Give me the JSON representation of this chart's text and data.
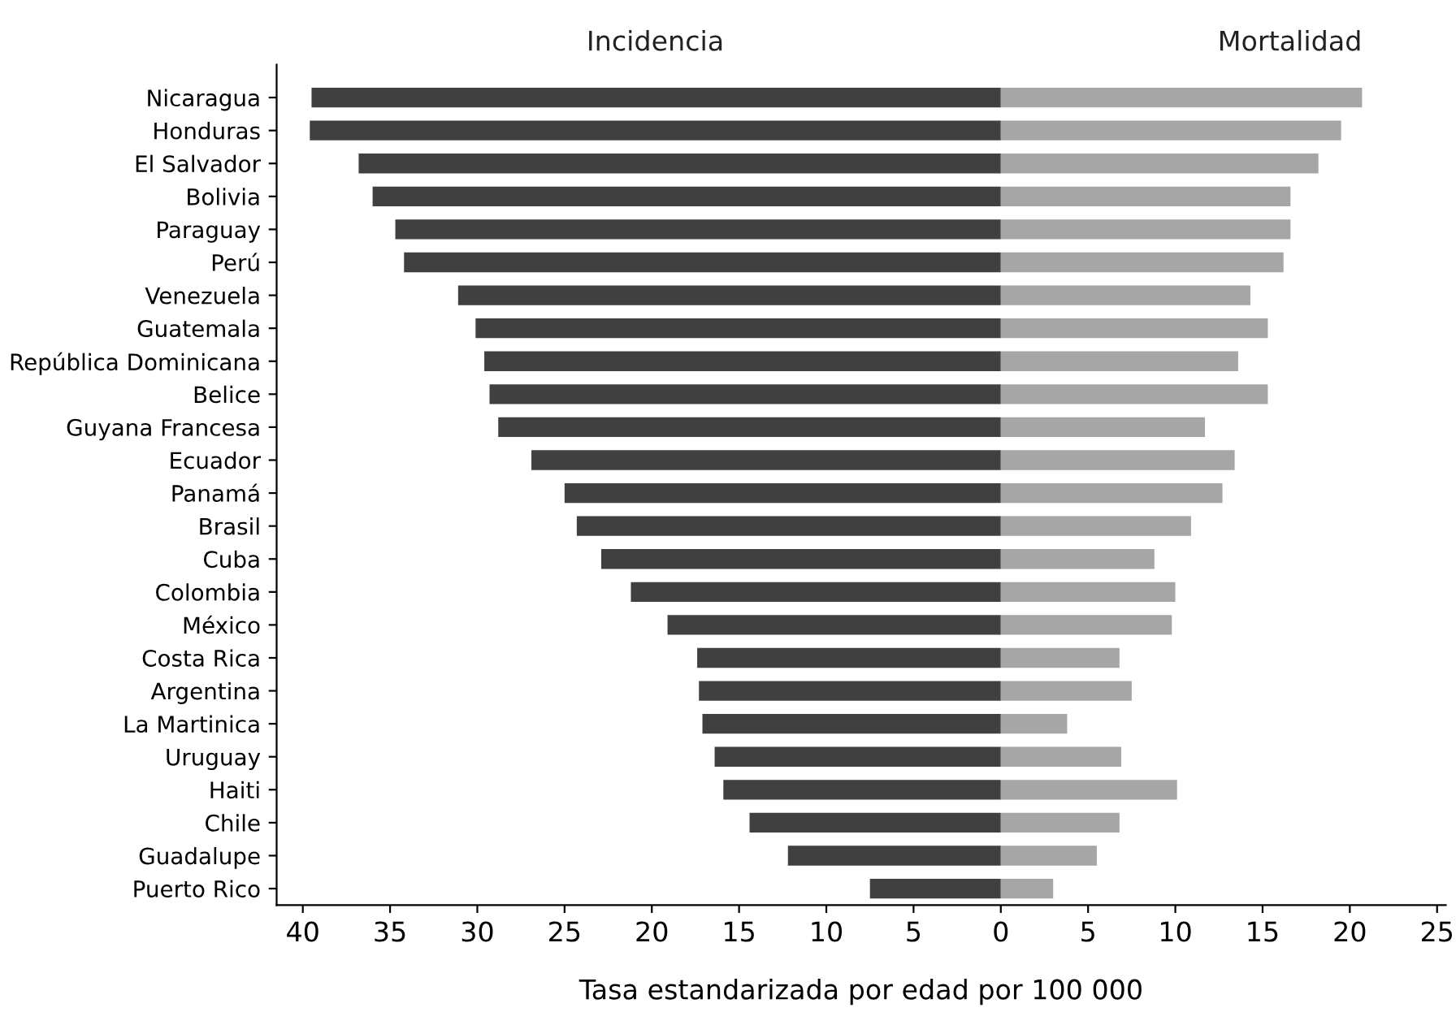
{
  "chart_data": {
    "type": "bar",
    "orientation": "horizontal",
    "stacked": true,
    "xlabel": "Tasa estandarizada por edad por 100 000",
    "categories": [
      "Nicaragua",
      "Honduras",
      "El Salvador",
      "Bolivia",
      "Paraguay",
      "Perú",
      "Venezuela",
      "Guatemala",
      "República Dominicana",
      "Belice",
      "Guyana Francesa",
      "Ecuador",
      "Panamá",
      "Brasil",
      "Cuba",
      "Colombia",
      "México",
      "Costa Rica",
      "Argentina",
      "La Martinica",
      "Uruguay",
      "Haiti",
      "Chile",
      "Guadalupe",
      "Puerto Rico"
    ],
    "series": [
      {
        "name": "Incidencia",
        "color": "#404040",
        "values": [
          -39.5,
          -39.6,
          -36.8,
          -36.0,
          -34.7,
          -34.2,
          -31.1,
          -30.1,
          -29.6,
          -29.3,
          -28.8,
          -26.9,
          -25.0,
          -24.3,
          -22.9,
          -21.2,
          -19.1,
          -17.4,
          -17.3,
          -17.1,
          -16.4,
          -15.9,
          -14.4,
          -12.2,
          -7.5
        ]
      },
      {
        "name": "Mortalidad",
        "color": "#a6a6a6",
        "values": [
          20.7,
          19.5,
          18.2,
          16.6,
          16.6,
          16.2,
          14.3,
          15.3,
          13.6,
          15.3,
          11.7,
          13.4,
          12.7,
          10.9,
          8.8,
          10.0,
          9.8,
          6.8,
          7.5,
          3.8,
          6.9,
          10.1,
          6.8,
          5.5,
          3.0
        ]
      }
    ],
    "xlim": [
      -41.5,
      25.5
    ],
    "xticks": [
      {
        "value": -40,
        "label": "40"
      },
      {
        "value": -35,
        "label": "35"
      },
      {
        "value": -30,
        "label": "30"
      },
      {
        "value": -25,
        "label": "25"
      },
      {
        "value": -20,
        "label": "20"
      },
      {
        "value": -15,
        "label": "15"
      },
      {
        "value": -10,
        "label": "10"
      },
      {
        "value": -5,
        "label": "5"
      },
      0,
      5,
      10,
      15,
      20,
      25
    ],
    "grid": false,
    "legend": false
  }
}
